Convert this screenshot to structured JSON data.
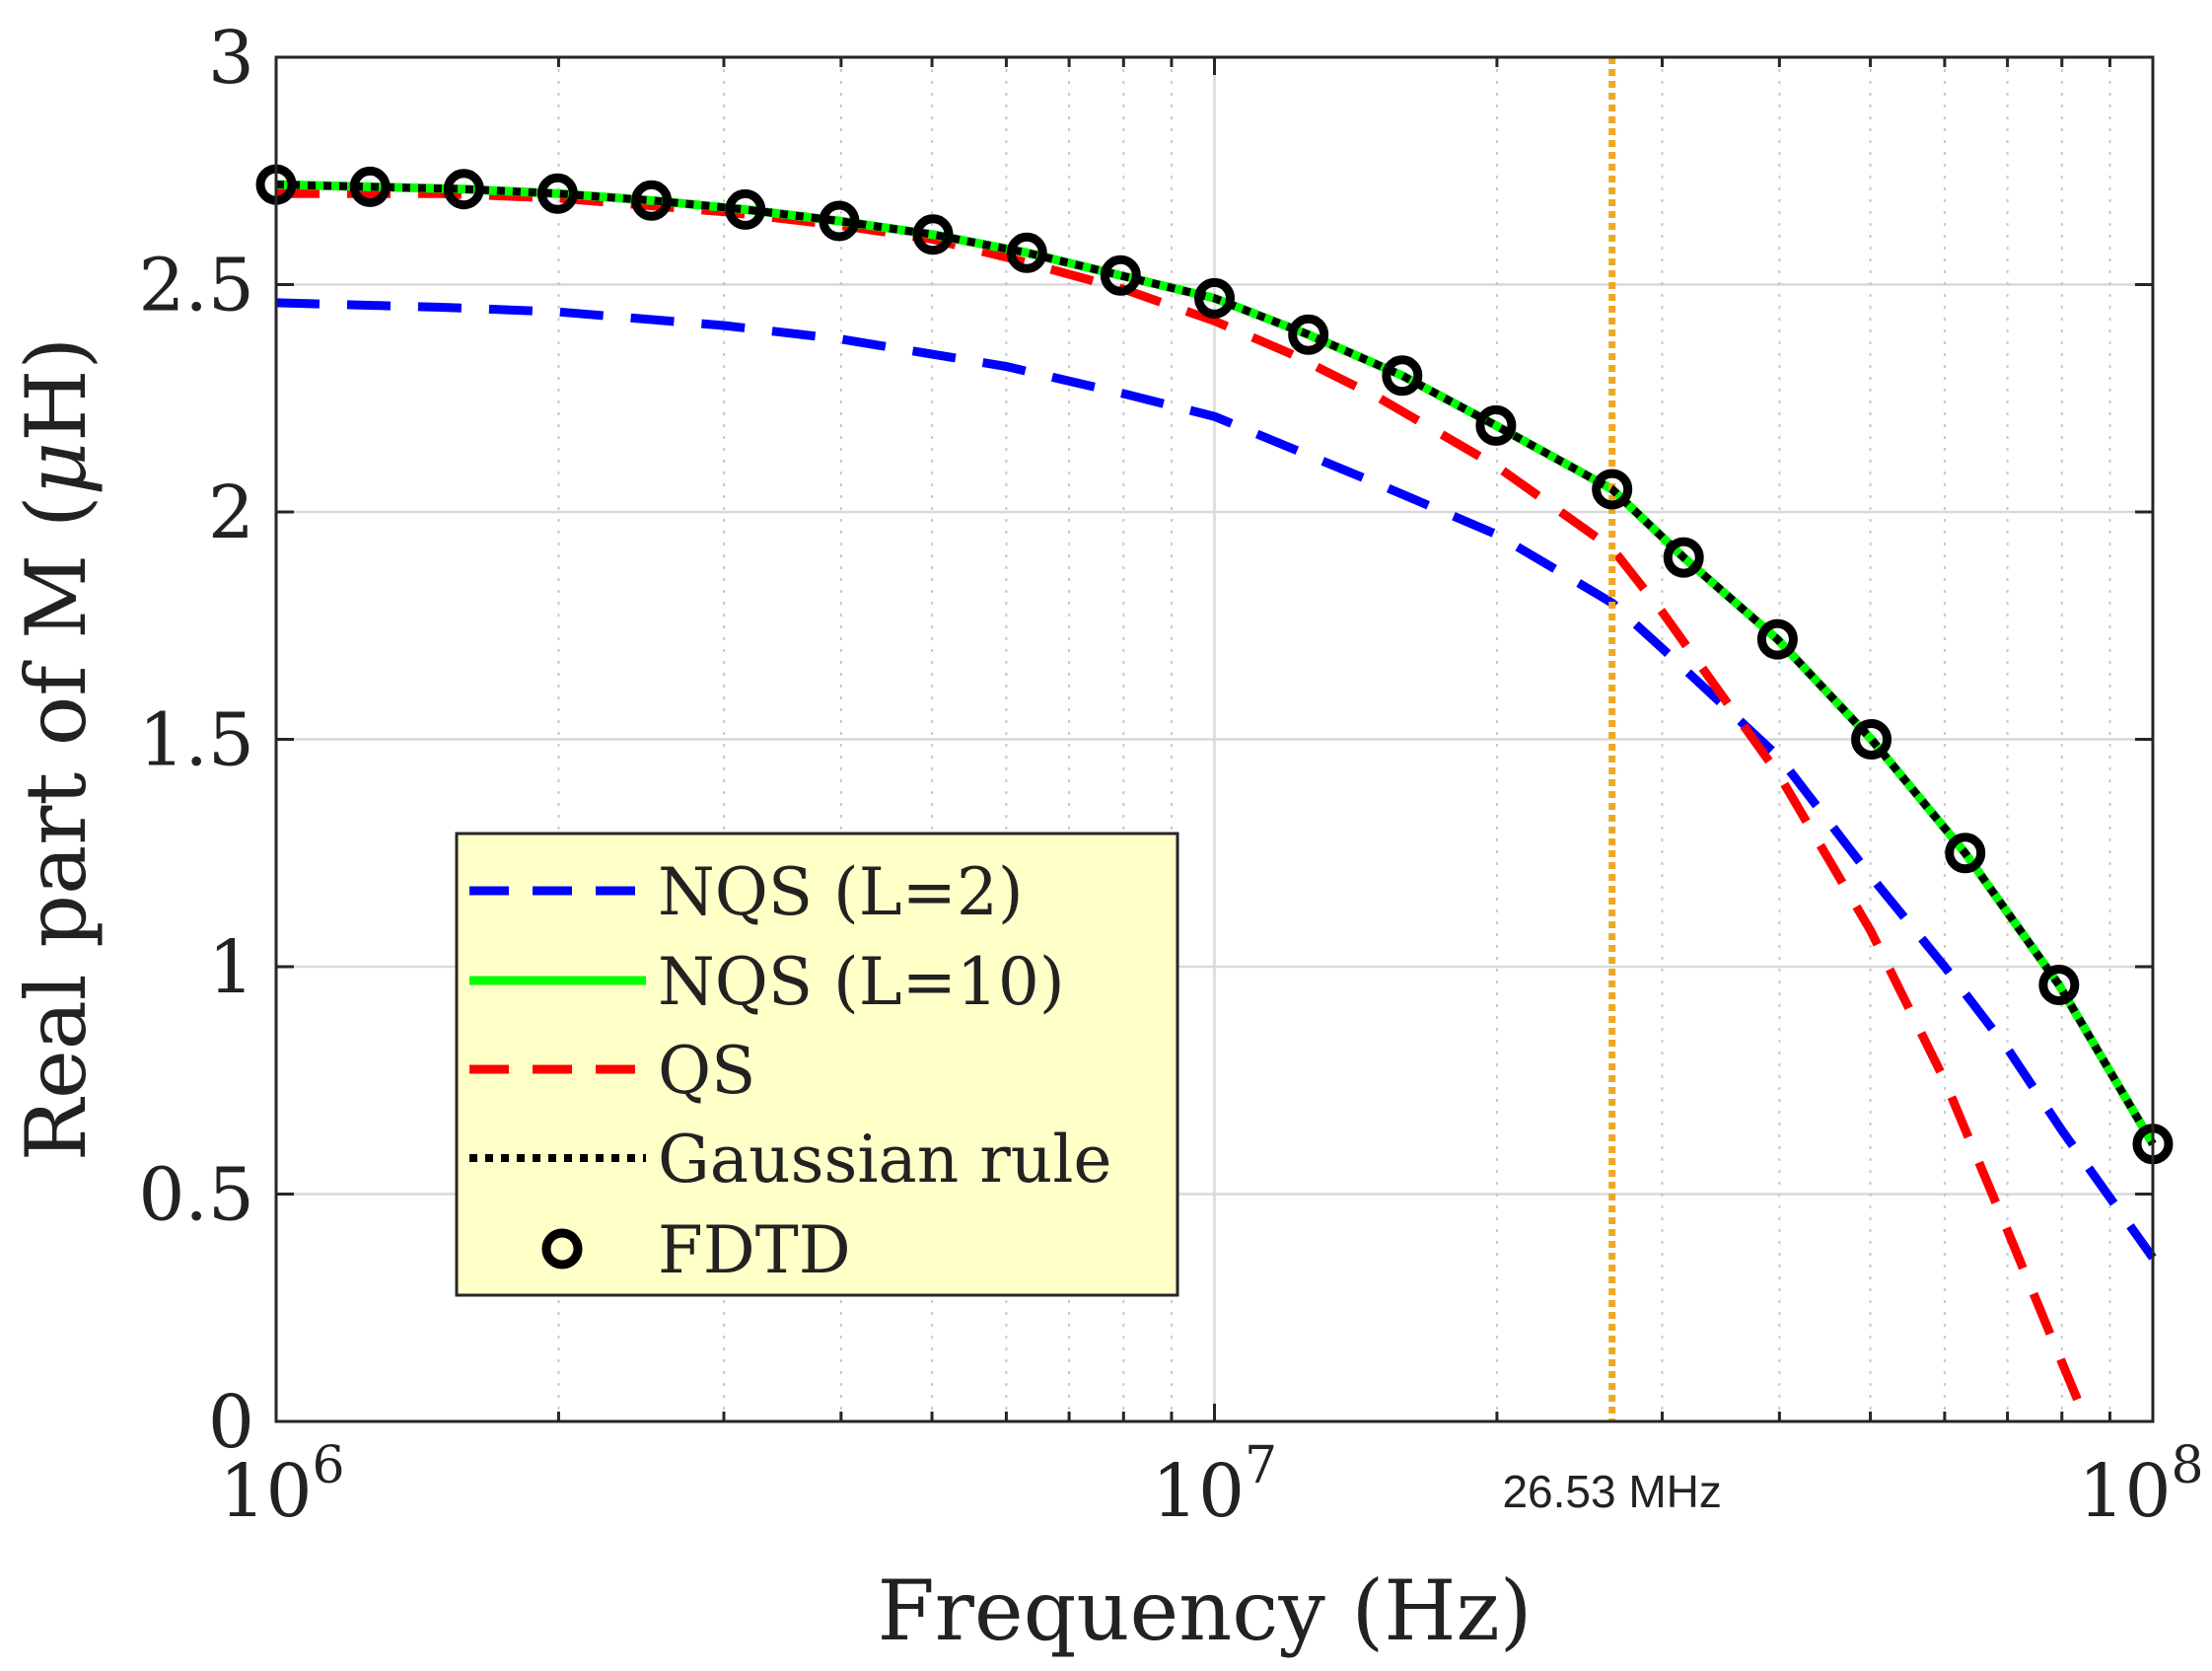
{
  "chart_data": {
    "type": "line",
    "xscale": "log",
    "xlim": [
      1000000,
      100000000
    ],
    "ylim": [
      0,
      3
    ],
    "xlabel": "Frequency (Hz)",
    "ylabel_main": "Real part of M (",
    "ylabel_mu": "μ",
    "ylabel_tail": "H)",
    "x_tick_values": [
      1000000,
      10000000,
      100000000
    ],
    "x_tick_labels": [
      {
        "base": "10",
        "exp": "6"
      },
      {
        "base": "10",
        "exp": "7"
      },
      {
        "base": "10",
        "exp": "8"
      }
    ],
    "y_tick_values": [
      0,
      0.5,
      1,
      1.5,
      2,
      2.5,
      3
    ],
    "y_tick_labels": [
      "0",
      "0.5",
      "1",
      "1.5",
      "2",
      "2.5",
      "3"
    ],
    "grid": true,
    "annotation": {
      "x": 26530000,
      "label": "26.53 MHz",
      "color": "#EDA823"
    },
    "legend_position": "lower-left",
    "legend_bg": "#FFFFC8",
    "series": [
      {
        "name": "NQS (L=2)",
        "style": "dashed",
        "color": "#0000FF",
        "x": [
          1000000,
          1500000,
          2000000,
          3000000,
          4000000,
          6000000,
          8000000,
          10000000,
          15000000,
          20000000,
          26530000,
          30000000,
          40000000,
          50000000,
          60000000,
          70000000,
          80000000,
          100000000
        ],
        "y": [
          2.46,
          2.45,
          2.44,
          2.41,
          2.38,
          2.32,
          2.26,
          2.21,
          2.06,
          1.95,
          1.8,
          1.7,
          1.46,
          1.2,
          1.0,
          0.82,
          0.64,
          0.36
        ]
      },
      {
        "name": "NQS (L=10)",
        "style": "solid",
        "color": "#00FF00",
        "x": [
          1000000,
          1259000,
          1585000,
          1995000,
          2512000,
          3162000,
          3981000,
          5012000,
          6310000,
          7943000,
          10000000,
          12590000,
          15850000,
          19950000,
          26530000,
          31620000,
          39810000,
          50120000,
          63100000,
          79430000,
          100000000
        ],
        "y": [
          2.72,
          2.715,
          2.71,
          2.7,
          2.685,
          2.665,
          2.64,
          2.61,
          2.57,
          2.52,
          2.47,
          2.39,
          2.3,
          2.19,
          2.05,
          1.9,
          1.72,
          1.5,
          1.25,
          0.96,
          0.61
        ]
      },
      {
        "name": "QS",
        "style": "dashed",
        "color": "#FF0000",
        "x": [
          1000000,
          1500000,
          2000000,
          3000000,
          4000000,
          5000000,
          6000000,
          8000000,
          10000000,
          12000000,
          15000000,
          20000000,
          26530000,
          30000000,
          40000000,
          50000000,
          60000000,
          70000000,
          80000000,
          85000000
        ],
        "y": [
          2.7,
          2.7,
          2.69,
          2.66,
          2.63,
          2.6,
          2.56,
          2.49,
          2.42,
          2.35,
          2.25,
          2.1,
          1.92,
          1.78,
          1.42,
          1.08,
          0.75,
          0.42,
          0.13,
          0.0
        ]
      },
      {
        "name": "Gaussian rule",
        "style": "dotted",
        "color": "#000000",
        "x": [
          1000000,
          1259000,
          1585000,
          1995000,
          2512000,
          3162000,
          3981000,
          5012000,
          6310000,
          7943000,
          10000000,
          12590000,
          15850000,
          19950000,
          26530000,
          31620000,
          39810000,
          50120000,
          63100000,
          79430000,
          100000000
        ],
        "y": [
          2.72,
          2.715,
          2.71,
          2.7,
          2.685,
          2.665,
          2.64,
          2.61,
          2.57,
          2.52,
          2.47,
          2.39,
          2.3,
          2.19,
          2.05,
          1.9,
          1.72,
          1.5,
          1.25,
          0.96,
          0.61
        ]
      },
      {
        "name": "FDTD",
        "style": "markers",
        "color": "#000000",
        "x": [
          1000000,
          1259000,
          1585000,
          1995000,
          2512000,
          3162000,
          3981000,
          5012000,
          6310000,
          7943000,
          10000000,
          12590000,
          15850000,
          19950000,
          26530000,
          31620000,
          39810000,
          50120000,
          63100000,
          79430000,
          100000000
        ],
        "y": [
          2.72,
          2.715,
          2.71,
          2.7,
          2.685,
          2.665,
          2.64,
          2.61,
          2.57,
          2.52,
          2.47,
          2.39,
          2.3,
          2.19,
          2.05,
          1.9,
          1.72,
          1.5,
          1.25,
          0.96,
          0.61
        ]
      }
    ]
  }
}
